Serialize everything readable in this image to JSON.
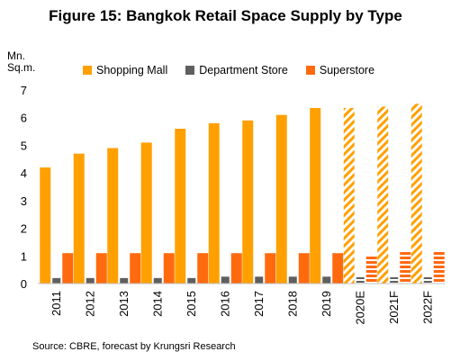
{
  "title": "Figure 15: Bangkok Retail Space Supply by Type",
  "source": "Source: CBRE, forecast by Krungsri Research",
  "colors": {
    "shopping_mall": "#FFA000",
    "department_store": "#5F5F5F",
    "superstore": "#FF6A0F",
    "forecast_hatch": "#FFC966"
  },
  "chart_data": {
    "type": "bar",
    "title": "Figure 15: Bangkok Retail Space Supply by Type",
    "ylabel": "Mn. Sq.m.",
    "ylabel_lines": [
      "Mn.",
      "Sq.m."
    ],
    "xlabel": "",
    "ylim": [
      0,
      7
    ],
    "yticks": [
      "0",
      "1",
      "2",
      "3",
      "4",
      "5",
      "6",
      "7"
    ],
    "grid": false,
    "legend_position": "top",
    "categories": [
      "2011",
      "2012",
      "2013",
      "2014",
      "2015",
      "2016",
      "2017",
      "2018",
      "2019",
      "2020E",
      "2021F",
      "2022F"
    ],
    "forecast_categories": [
      "2020E",
      "2021F",
      "2022F"
    ],
    "series": [
      {
        "name": "Shopping Mall",
        "color_key": "shopping_mall",
        "values": [
          4.2,
          4.7,
          4.9,
          5.1,
          5.6,
          5.8,
          5.9,
          6.1,
          6.35,
          6.35,
          6.4,
          6.5
        ]
      },
      {
        "name": "Department Store",
        "color_key": "department_store",
        "values": [
          0.2,
          0.2,
          0.2,
          0.2,
          0.2,
          0.25,
          0.25,
          0.25,
          0.25,
          0.25,
          0.25,
          0.25
        ]
      },
      {
        "name": "Superstore",
        "color_key": "superstore",
        "values": [
          1.1,
          1.1,
          1.1,
          1.1,
          1.1,
          1.1,
          1.1,
          1.1,
          1.1,
          1.0,
          1.2,
          1.2
        ]
      }
    ]
  }
}
